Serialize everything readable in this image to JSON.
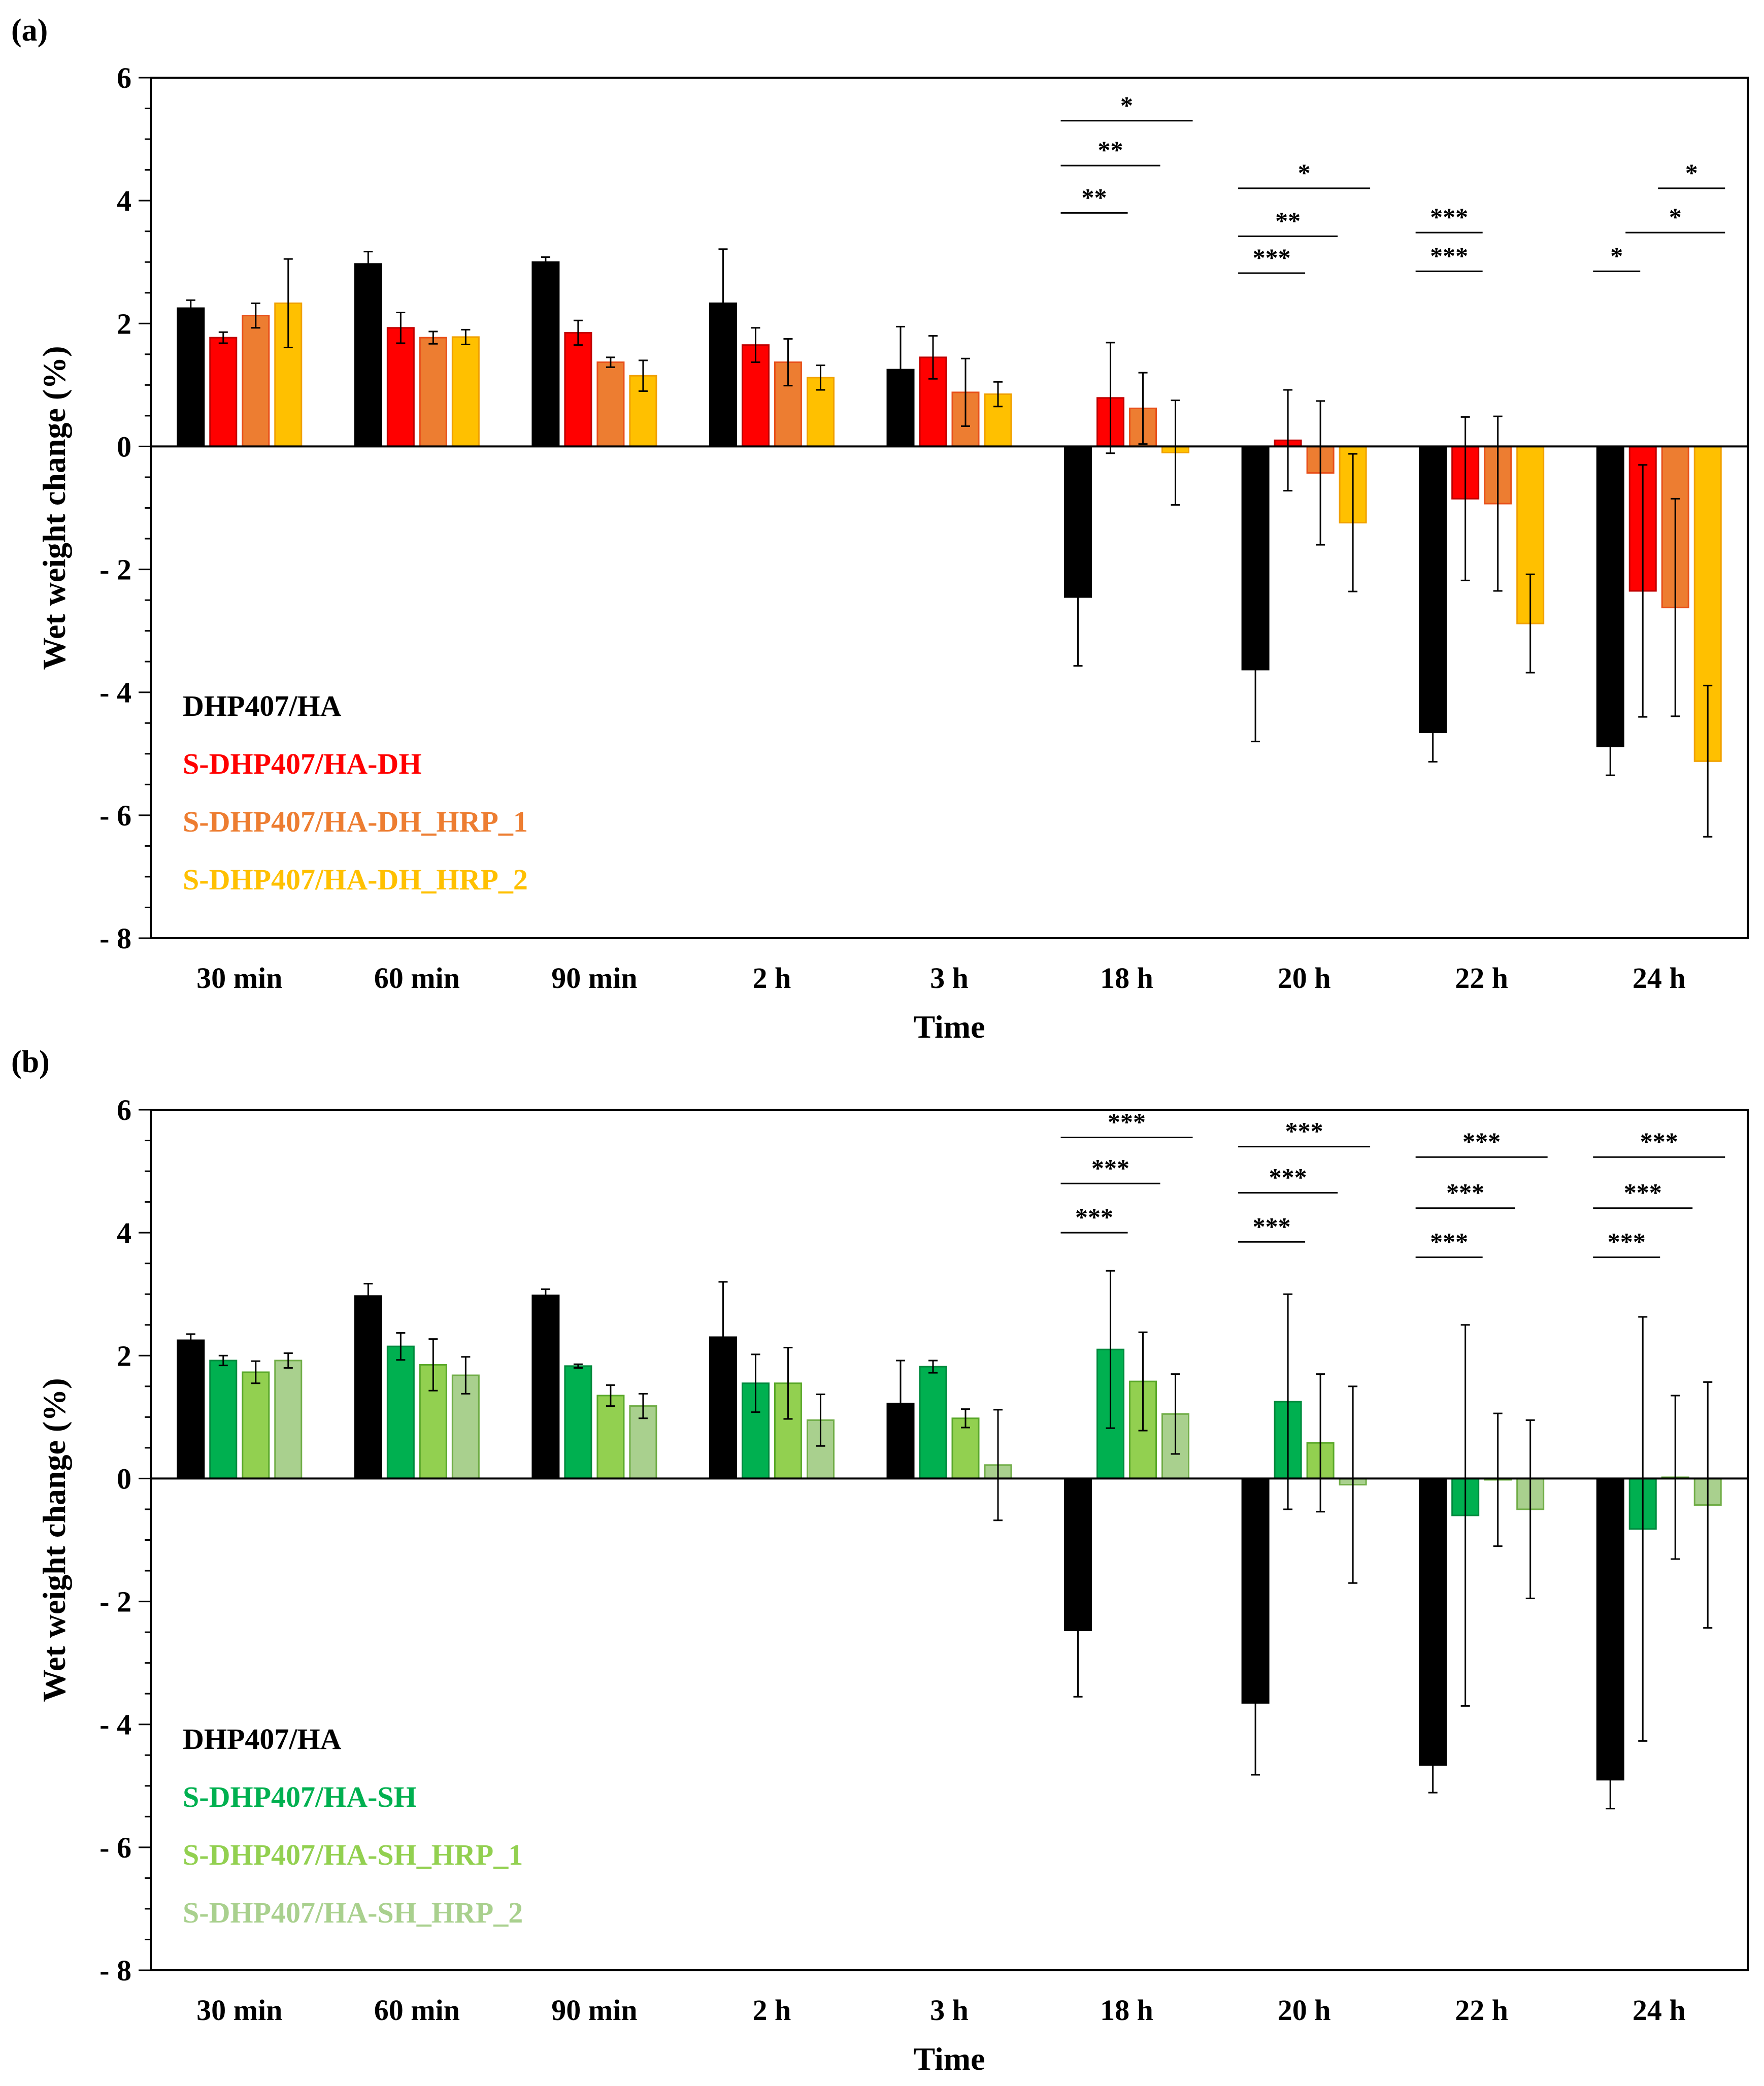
{
  "chart_data": [
    {
      "type": "bar",
      "panel_label": "(a)",
      "title": "",
      "xlabel": "Time",
      "ylabel": "Wet weight change (%)",
      "ylim": [
        -8,
        6
      ],
      "yticks": [
        6,
        4,
        2,
        0,
        -2,
        -4,
        -6,
        -8
      ],
      "ytick_labels": [
        "6",
        "4",
        "2",
        "0",
        "- 2",
        "- 4",
        "- 6",
        "- 8"
      ],
      "categories": [
        "30 min",
        "60 min",
        "90 min",
        "2 h",
        "3 h",
        "18 h",
        "20 h",
        "22 h",
        "24 h"
      ],
      "legend_position": "bottom-left",
      "series": [
        {
          "name": "DHP407/HA",
          "color": "#000000",
          "stroke": "#000000",
          "values": [
            2.25,
            2.97,
            3.0,
            2.33,
            1.25,
            -2.45,
            -3.63,
            -4.65,
            -4.88
          ],
          "errors": [
            0.13,
            0.2,
            0.08,
            0.88,
            0.7,
            1.12,
            1.17,
            0.48,
            0.47
          ]
        },
        {
          "name": "S-DHP407/HA-DH",
          "color": "#ff0000",
          "stroke": "#c00000",
          "values": [
            1.77,
            1.93,
            1.85,
            1.65,
            1.45,
            0.79,
            0.1,
            -0.85,
            -2.35
          ],
          "errors": [
            0.09,
            0.25,
            0.2,
            0.28,
            0.35,
            0.9,
            0.82,
            1.33,
            2.05
          ]
        },
        {
          "name": "S-DHP407/HA-DH_HRP_1",
          "color": "#ed7d31",
          "stroke": "#e8501a",
          "values": [
            2.13,
            1.77,
            1.37,
            1.37,
            0.88,
            0.62,
            -0.43,
            -0.93,
            -2.62
          ],
          "errors": [
            0.2,
            0.1,
            0.08,
            0.38,
            0.55,
            0.58,
            1.17,
            1.42,
            1.77
          ]
        },
        {
          "name": "S-DHP407/HA-DH_HRP_2",
          "color": "#ffc000",
          "stroke": "#f0a000",
          "values": [
            2.33,
            1.78,
            1.15,
            1.12,
            0.85,
            -0.1,
            -1.24,
            -2.88,
            -5.12
          ],
          "errors": [
            0.72,
            0.12,
            0.25,
            0.2,
            0.2,
            0.85,
            1.12,
            0.8,
            1.23
          ]
        }
      ],
      "significance": [
        {
          "category": "18 h",
          "from_series": 0,
          "to_series": 3,
          "y": 5.3,
          "label": "*"
        },
        {
          "category": "18 h",
          "from_series": 0,
          "to_series": 2,
          "y": 4.57,
          "label": "**"
        },
        {
          "category": "18 h",
          "from_series": 0,
          "to_series": 1,
          "y": 3.8,
          "label": "**"
        },
        {
          "category": "20 h",
          "from_series": 0,
          "to_series": 3,
          "y": 4.2,
          "label": "*"
        },
        {
          "category": "20 h",
          "from_series": 0,
          "to_series": 2,
          "y": 3.42,
          "label": "**"
        },
        {
          "category": "20 h",
          "from_series": 0,
          "to_series": 1,
          "y": 2.82,
          "label": "***"
        },
        {
          "category": "22 h",
          "from_series": 0,
          "to_series": 1,
          "y": 3.48,
          "label": "***"
        },
        {
          "category": "22 h",
          "from_series": 0,
          "to_series": 1,
          "y": 2.85,
          "label": "***"
        },
        {
          "category": "24 h",
          "from_series": 0,
          "to_series": 0.55,
          "y": 2.85,
          "label": "*"
        },
        {
          "category": "24 h",
          "from_series": 1,
          "to_series": 3,
          "y": 3.48,
          "label": "*"
        },
        {
          "category": "24 h",
          "from_series": 2,
          "to_series": 3,
          "y": 4.2,
          "label": "*"
        }
      ]
    },
    {
      "type": "bar",
      "panel_label": "(b)",
      "title": "",
      "xlabel": "Time",
      "ylabel": "Wet weight change (%)",
      "ylim": [
        -8,
        6
      ],
      "yticks": [
        6,
        4,
        2,
        0,
        -2,
        -4,
        -6,
        -8
      ],
      "ytick_labels": [
        "6",
        "4",
        "2",
        "0",
        "- 2",
        "- 4",
        "- 6",
        "- 8"
      ],
      "categories": [
        "30 min",
        "60 min",
        "90 min",
        "2 h",
        "3 h",
        "18 h",
        "20 h",
        "22 h",
        "24 h"
      ],
      "legend_position": "bottom-left",
      "series": [
        {
          "name": "DHP407/HA",
          "color": "#000000",
          "stroke": "#000000",
          "values": [
            2.25,
            2.97,
            2.98,
            2.3,
            1.22,
            -2.47,
            -3.65,
            -4.66,
            -4.9
          ],
          "errors": [
            0.1,
            0.2,
            0.1,
            0.9,
            0.7,
            1.08,
            1.17,
            0.45,
            0.47
          ]
        },
        {
          "name": "S-DHP407/HA-SH",
          "color": "#00b050",
          "stroke": "#008a3e",
          "values": [
            1.92,
            2.15,
            1.83,
            1.55,
            1.82,
            2.1,
            1.25,
            -0.6,
            -0.82
          ],
          "errors": [
            0.08,
            0.22,
            0.03,
            0.47,
            0.1,
            1.28,
            1.75,
            3.1,
            3.45
          ]
        },
        {
          "name": "S-DHP407/HA-SH_HRP_1",
          "color": "#92d050",
          "stroke": "#5aa82a",
          "values": [
            1.73,
            1.85,
            1.35,
            1.55,
            0.98,
            1.58,
            0.58,
            -0.02,
            0.02
          ],
          "errors": [
            0.18,
            0.42,
            0.17,
            0.58,
            0.15,
            0.8,
            1.12,
            1.08,
            1.33
          ]
        },
        {
          "name": "S-DHP407/HA-SH_HRP_2",
          "color": "#a9d08e",
          "stroke": "#70ad47",
          "values": [
            1.92,
            1.68,
            1.18,
            0.95,
            0.22,
            1.05,
            -0.1,
            -0.5,
            -0.43
          ],
          "errors": [
            0.12,
            0.3,
            0.2,
            0.42,
            0.9,
            0.65,
            1.6,
            1.45,
            2.0
          ]
        }
      ],
      "significance": [
        {
          "category": "18 h",
          "from_series": 0,
          "to_series": 3,
          "y": 5.55,
          "label": "***"
        },
        {
          "category": "18 h",
          "from_series": 0,
          "to_series": 2,
          "y": 4.8,
          "label": "***"
        },
        {
          "category": "18 h",
          "from_series": 0,
          "to_series": 1,
          "y": 4.0,
          "label": "***"
        },
        {
          "category": "20 h",
          "from_series": 0,
          "to_series": 3,
          "y": 5.4,
          "label": "***"
        },
        {
          "category": "20 h",
          "from_series": 0,
          "to_series": 2,
          "y": 4.65,
          "label": "***"
        },
        {
          "category": "20 h",
          "from_series": 0,
          "to_series": 1,
          "y": 3.85,
          "label": "***"
        },
        {
          "category": "22 h",
          "from_series": 0,
          "to_series": 3,
          "y": 5.23,
          "label": "***"
        },
        {
          "category": "22 h",
          "from_series": 0,
          "to_series": 2,
          "y": 4.4,
          "label": "***"
        },
        {
          "category": "22 h",
          "from_series": 0,
          "to_series": 1,
          "y": 3.6,
          "label": "***"
        },
        {
          "category": "24 h",
          "from_series": 0,
          "to_series": 3,
          "y": 5.23,
          "label": "***"
        },
        {
          "category": "24 h",
          "from_series": 0,
          "to_series": 2,
          "y": 4.4,
          "label": "***"
        },
        {
          "category": "24 h",
          "from_series": 0,
          "to_series": 1,
          "y": 3.6,
          "label": "***"
        }
      ]
    }
  ]
}
